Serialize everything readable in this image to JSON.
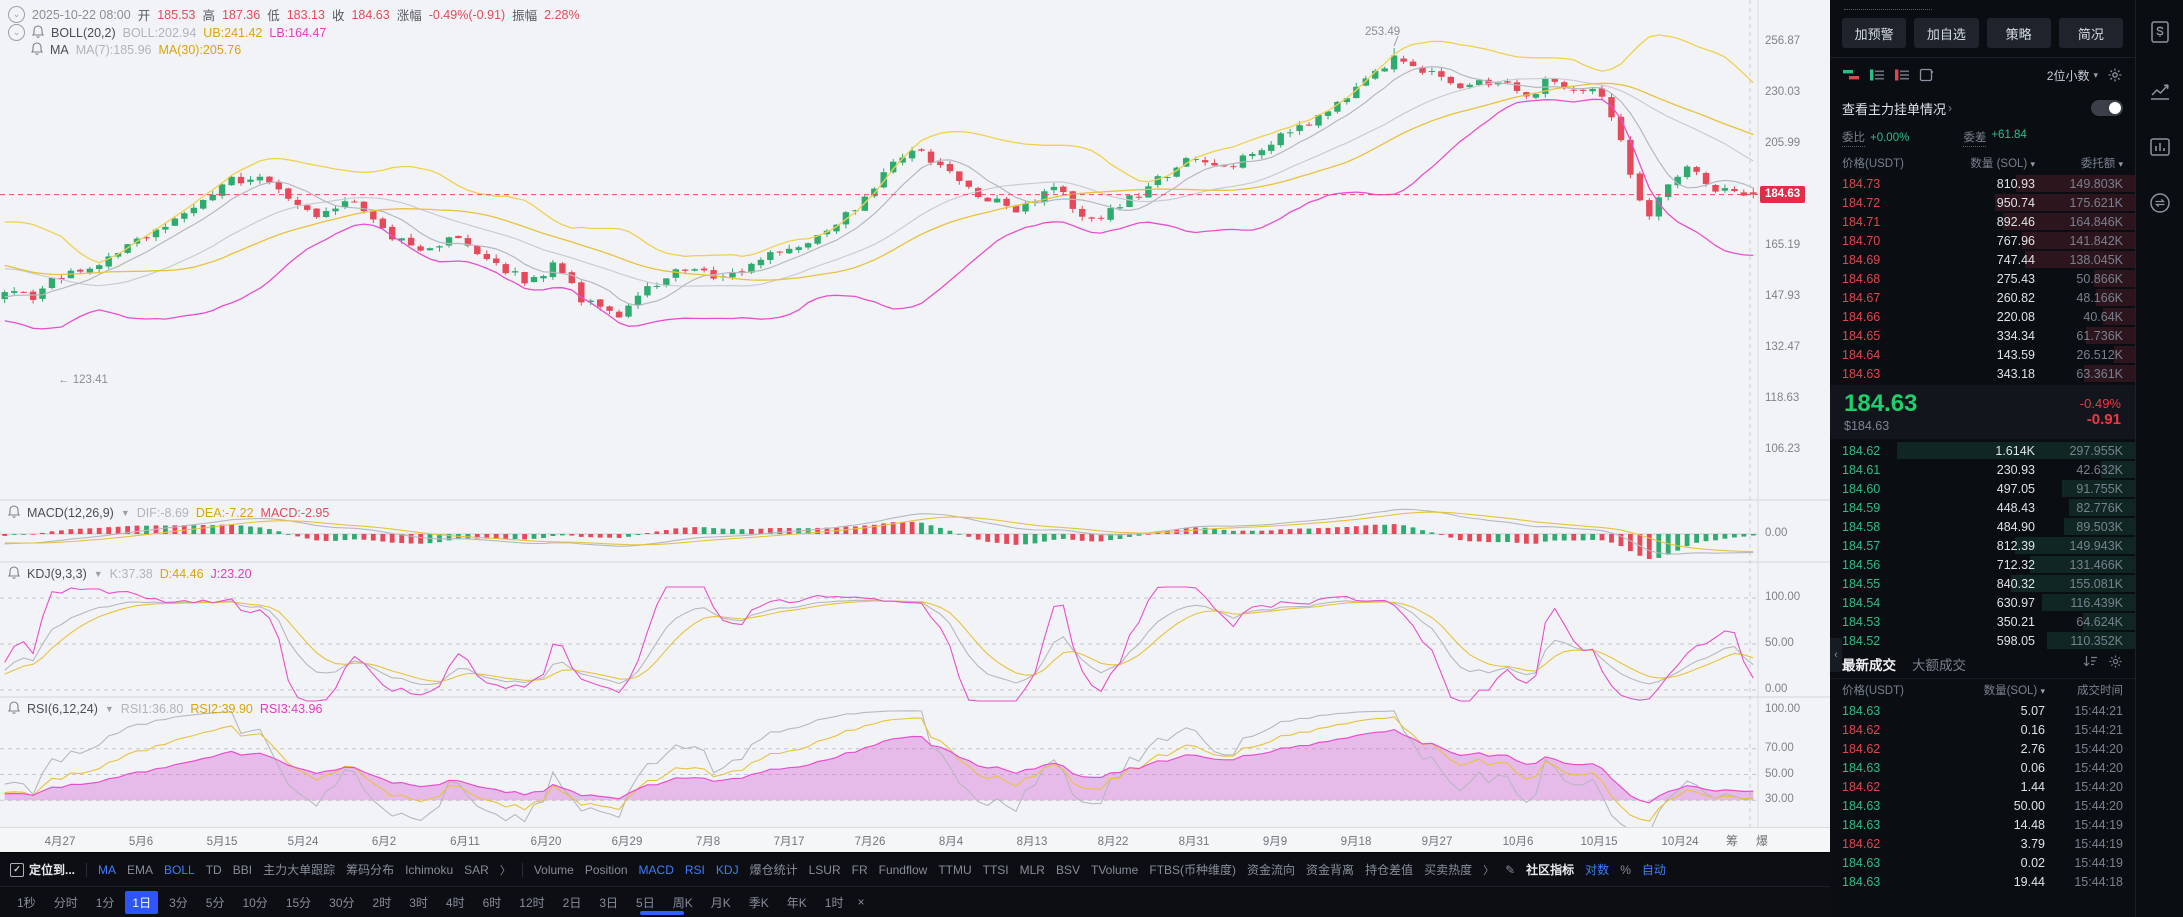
{
  "chart": {
    "info": {
      "datetime": "2025-10-22 08:00",
      "o_label": "开",
      "o": "185.53",
      "h_label": "高",
      "h": "187.36",
      "l_label": "低",
      "l": "183.13",
      "c_label": "收",
      "c": "184.63",
      "chg_label": "涨幅",
      "chg": "-0.49%(-0.91)",
      "amp_label": "振幅",
      "amp": "2.28%"
    },
    "boll": {
      "name": "BOLL(20,2)",
      "mid": "BOLL:202.94",
      "ub": "UB:241.42",
      "lb": "LB:164.47"
    },
    "ma": {
      "name": "MA",
      "ma7": "MA(7):185.96",
      "ma30": "MA(30):205.76"
    },
    "macd": {
      "name": "MACD(12,26,9)",
      "dif": "DIF:-8.69",
      "dea": "DEA:-7.22",
      "macd": "MACD:-2.95",
      "tick": "0.00"
    },
    "kdj": {
      "name": "KDJ(9,3,3)",
      "k": "K:37.38",
      "d": "D:44.46",
      "j": "J:23.20",
      "ticks": [
        "100.00",
        "50.00",
        "0.00"
      ]
    },
    "rsi": {
      "name": "RSI(6,12,24)",
      "r1": "RSI1:36.80",
      "r2": "RSI2:39.90",
      "r3": "RSI3:43.96",
      "ticks": [
        "100.00",
        "70.00",
        "50.00",
        "30.00"
      ]
    },
    "y_ticks": [
      "256.87",
      "230.03",
      "205.99",
      "184.63",
      "165.19",
      "147.93",
      "132.47",
      "118.63",
      "106.23"
    ],
    "price_badge": "184.63",
    "x_labels": [
      "4月27",
      "5月6",
      "5月15",
      "5月24",
      "6月2",
      "6月11",
      "6月20",
      "6月29",
      "7月8",
      "7月17",
      "7月26",
      "8月4",
      "8月13",
      "8月22",
      "8月31",
      "9月9",
      "9月18",
      "9月27",
      "10月6",
      "10月15",
      "10月24"
    ],
    "x_extra": [
      "筹",
      "爆"
    ],
    "annotations": {
      "high": "253.49",
      "low": "← 123.41"
    }
  },
  "chart_data": {
    "type": "candlestick",
    "scale": "log",
    "current_price": 184.63,
    "last_candle": {
      "open": 185.53,
      "high": 187.36,
      "low": 183.13,
      "close": 184.63
    },
    "y_axis_ticks": [
      256.87,
      230.03,
      205.99,
      184.63,
      165.19,
      147.93,
      132.47,
      118.63,
      106.23
    ],
    "high_annotation": 253.49,
    "low_annotation": 123.41,
    "price_anchors": [
      [
        -0.17,
        183
      ],
      [
        -0.12,
        152
      ],
      [
        -0.07,
        168
      ],
      [
        -0.03,
        149
      ],
      [
        0,
        150
      ],
      [
        0.015,
        148
      ],
      [
        0.03,
        154
      ],
      [
        0.05,
        159
      ],
      [
        0.07,
        165
      ],
      [
        0.09,
        171
      ],
      [
        0.11,
        179
      ],
      [
        0.13,
        190
      ],
      [
        0.145,
        191
      ],
      [
        0.16,
        183
      ],
      [
        0.18,
        176
      ],
      [
        0.2,
        183
      ],
      [
        0.22,
        170
      ],
      [
        0.24,
        162
      ],
      [
        0.26,
        170
      ],
      [
        0.28,
        158
      ],
      [
        0.3,
        153
      ],
      [
        0.315,
        159
      ],
      [
        0.33,
        147
      ],
      [
        0.35,
        141
      ],
      [
        0.37,
        152
      ],
      [
        0.39,
        158
      ],
      [
        0.41,
        154
      ],
      [
        0.43,
        160
      ],
      [
        0.45,
        164
      ],
      [
        0.47,
        171
      ],
      [
        0.49,
        181
      ],
      [
        0.505,
        196
      ],
      [
        0.52,
        204
      ],
      [
        0.54,
        193
      ],
      [
        0.56,
        183
      ],
      [
        0.58,
        178
      ],
      [
        0.6,
        187
      ],
      [
        0.62,
        175
      ],
      [
        0.64,
        181
      ],
      [
        0.66,
        191
      ],
      [
        0.68,
        201
      ],
      [
        0.7,
        196
      ],
      [
        0.72,
        206
      ],
      [
        0.74,
        212
      ],
      [
        0.76,
        222
      ],
      [
        0.78,
        236
      ],
      [
        0.795,
        250
      ],
      [
        0.81,
        243
      ],
      [
        0.83,
        232
      ],
      [
        0.85,
        236
      ],
      [
        0.87,
        229
      ],
      [
        0.885,
        237
      ],
      [
        0.9,
        232
      ],
      [
        0.915,
        228
      ],
      [
        0.925,
        205
      ],
      [
        0.932,
        185
      ],
      [
        0.94,
        176
      ],
      [
        0.95,
        187
      ],
      [
        0.96,
        196
      ],
      [
        0.97,
        191
      ],
      [
        0.98,
        187
      ],
      [
        0.99,
        186
      ],
      [
        1,
        184.63
      ]
    ],
    "indicators": {
      "boll_mid": 202.94,
      "boll_ub": 241.42,
      "boll_lb": 164.47,
      "ma7": 185.96,
      "ma30": 205.76,
      "dif": -8.69,
      "dea": -7.22,
      "macd": -2.95,
      "k": 37.38,
      "d": 44.46,
      "j": 23.2,
      "rsi1": 36.8,
      "rsi2": 39.9,
      "rsi3": 43.96
    }
  },
  "indicator_bar": {
    "items": [
      {
        "t": "定位到...",
        "c": "title"
      },
      {
        "c": "sep"
      },
      {
        "t": "MA",
        "c": "on"
      },
      {
        "t": "EMA"
      },
      {
        "t": "BOLL",
        "c": "on"
      },
      {
        "t": "TD"
      },
      {
        "t": "BBI"
      },
      {
        "t": "主力大单跟踪"
      },
      {
        "t": "筹码分布"
      },
      {
        "t": "Ichimoku"
      },
      {
        "t": "SAR"
      },
      {
        "t": "〉",
        "c": "chev"
      },
      {
        "c": "sep"
      },
      {
        "t": "Volume"
      },
      {
        "t": "Position"
      },
      {
        "t": "MACD",
        "c": "on"
      },
      {
        "t": "RSI",
        "c": "on"
      },
      {
        "t": "KDJ",
        "c": "on"
      },
      {
        "t": "爆仓统计"
      },
      {
        "t": "LSUR"
      },
      {
        "t": "FR"
      },
      {
        "t": "Fundflow"
      },
      {
        "t": "TTMU"
      },
      {
        "t": "TTSI"
      },
      {
        "t": "MLR"
      },
      {
        "t": "BSV"
      },
      {
        "t": "TVolume"
      },
      {
        "t": "FTBS(币种维度)"
      },
      {
        "t": "资金流向"
      },
      {
        "t": "资金背离"
      },
      {
        "t": "持仓差值"
      },
      {
        "t": "买卖热度"
      },
      {
        "t": "〉",
        "c": "chev"
      },
      {
        "c": "edit"
      },
      {
        "t": "社区指标",
        "c": "white"
      },
      {
        "t": "对数",
        "c": "on"
      },
      {
        "t": "%"
      },
      {
        "t": "自动",
        "c": "on"
      }
    ]
  },
  "timeframe_bar": {
    "items": [
      {
        "t": "1秒"
      },
      {
        "t": "分时"
      },
      {
        "t": "1分"
      },
      {
        "t": "1日",
        "active": true
      },
      {
        "t": "3分"
      },
      {
        "t": "5分"
      },
      {
        "t": "10分"
      },
      {
        "t": "15分"
      },
      {
        "t": "30分"
      },
      {
        "t": "2时"
      },
      {
        "t": "3时"
      },
      {
        "t": "4时"
      },
      {
        "t": "6时"
      },
      {
        "t": "12时"
      },
      {
        "t": "2日"
      },
      {
        "t": "3日"
      },
      {
        "t": "5日"
      },
      {
        "t": "周K"
      },
      {
        "t": "月K"
      },
      {
        "t": "季K"
      },
      {
        "t": "年K"
      },
      {
        "t": "1时",
        "closable": true
      }
    ],
    "close_glyph": "×"
  },
  "panel": {
    "buttons": [
      "加预警",
      "加自选",
      "策略",
      "简况"
    ],
    "decimals": "2位小数",
    "main_orders_link": "查看主力挂单情况",
    "ratio_label": "委比",
    "ratio_value": "+0.00%",
    "diff_label": "委差",
    "diff_value": "+61.84",
    "book_headers": [
      "价格(USDT)",
      "数量 (SOL)",
      "委托额"
    ],
    "asks": [
      {
        "p": "184.73",
        "q": "810.93",
        "a": "149.803K",
        "d": 50.2
      },
      {
        "p": "184.72",
        "q": "950.74",
        "a": "175.621K",
        "d": 58.9
      },
      {
        "p": "184.71",
        "q": "892.46",
        "a": "164.846K",
        "d": 55.3
      },
      {
        "p": "184.70",
        "q": "767.96",
        "a": "141.842K",
        "d": 47.6
      },
      {
        "p": "184.69",
        "q": "747.44",
        "a": "138.045K",
        "d": 46.3
      },
      {
        "p": "184.68",
        "q": "275.43",
        "a": "50.866K",
        "d": 17.1
      },
      {
        "p": "184.67",
        "q": "260.82",
        "a": "48.166K",
        "d": 16.2
      },
      {
        "p": "184.66",
        "q": "220.08",
        "a": "40.64K",
        "d": 13.6
      },
      {
        "p": "184.65",
        "q": "334.34",
        "a": "61.736K",
        "d": 20.7
      },
      {
        "p": "184.64",
        "q": "143.59",
        "a": "26.512K",
        "d": 8.9
      },
      {
        "p": "184.63",
        "q": "343.18",
        "a": "63.361K",
        "d": 21.3
      }
    ],
    "price": {
      "last": "184.63",
      "usd": "$184.63",
      "chg_pct": "-0.49%",
      "chg": "-0.91"
    },
    "bids": [
      {
        "p": "184.62",
        "q": "1.614K",
        "a": "297.955K",
        "d": 100
      },
      {
        "p": "184.61",
        "q": "230.93",
        "a": "42.632K",
        "d": 14.3
      },
      {
        "p": "184.60",
        "q": "497.05",
        "a": "91.755K",
        "d": 30.8
      },
      {
        "p": "184.59",
        "q": "448.43",
        "a": "82.776K",
        "d": 27.8
      },
      {
        "p": "184.58",
        "q": "484.90",
        "a": "89.503K",
        "d": 30.0
      },
      {
        "p": "184.57",
        "q": "812.39",
        "a": "149.943K",
        "d": 50.3
      },
      {
        "p": "184.56",
        "q": "712.32",
        "a": "131.466K",
        "d": 44.1
      },
      {
        "p": "184.55",
        "q": "840.32",
        "a": "155.081K",
        "d": 52.1
      },
      {
        "p": "184.54",
        "q": "630.97",
        "a": "116.439K",
        "d": 39.1
      },
      {
        "p": "184.53",
        "q": "350.21",
        "a": "64.624K",
        "d": 21.7
      },
      {
        "p": "184.52",
        "q": "598.05",
        "a": "110.352K",
        "d": 37.1
      }
    ],
    "tabs": [
      "最新成交",
      "大额成交"
    ],
    "trade_headers": [
      "价格(USDT)",
      "数量(SOL)",
      "成交时间"
    ],
    "trades": [
      {
        "p": "184.63",
        "side": "b",
        "q": "5.07",
        "t": "15:44:21"
      },
      {
        "p": "184.62",
        "side": "s",
        "q": "0.16",
        "t": "15:44:21"
      },
      {
        "p": "184.62",
        "side": "s",
        "q": "2.76",
        "t": "15:44:20"
      },
      {
        "p": "184.63",
        "side": "b",
        "q": "0.06",
        "t": "15:44:20"
      },
      {
        "p": "184.62",
        "side": "s",
        "q": "1.44",
        "t": "15:44:20"
      },
      {
        "p": "184.63",
        "side": "b",
        "q": "50.00",
        "t": "15:44:20"
      },
      {
        "p": "184.63",
        "side": "b",
        "q": "14.48",
        "t": "15:44:19"
      },
      {
        "p": "184.62",
        "side": "s",
        "q": "3.79",
        "t": "15:44:19"
      },
      {
        "p": "184.63",
        "side": "b",
        "q": "0.02",
        "t": "15:44:19"
      },
      {
        "p": "184.63",
        "side": "b",
        "q": "19.44",
        "t": "15:44:18"
      }
    ]
  },
  "colors": {
    "up": "#2eab6f",
    "down": "#e6495a",
    "yellow": "#e8c23f",
    "magenta": "#e84fd0",
    "gray_line": "#b5b9bf",
    "accent_blue": "#3d7dff",
    "bid_green": "#2ebd85",
    "ask_red": "#e0464e",
    "badge_red": "#e12d49"
  }
}
